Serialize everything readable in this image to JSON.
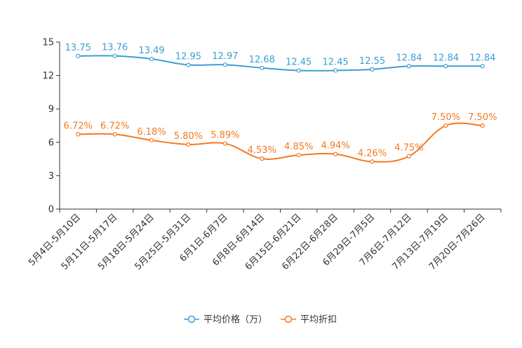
{
  "chart_data": {
    "type": "line",
    "title": "",
    "xlabel": "",
    "ylabel": "",
    "ylim": [
      0,
      15
    ],
    "yticks": [
      0,
      3,
      6,
      9,
      12,
      15
    ],
    "grid": false,
    "legend_position": "bottom-center",
    "categories": [
      "5月4日-5月10日",
      "5月11日-5月17日",
      "5月18日-5月24日",
      "5月25日-5月31日",
      "6月1日-6月7日",
      "6月8日-6月14日",
      "6月15日-6月21日",
      "6月22日-6月28日",
      "6月29日-7月5日",
      "7月6日-7月12日",
      "7月13日-7月19日",
      "7月20日-7月26日"
    ],
    "series": [
      {
        "name": "平均价格（万）",
        "color": "#3c9fd4",
        "values": [
          13.75,
          13.76,
          13.49,
          12.95,
          12.97,
          12.68,
          12.45,
          12.45,
          12.55,
          12.84,
          12.84,
          12.84
        ],
        "labels": [
          "13.75",
          "13.76",
          "13.49",
          "12.95",
          "12.97",
          "12.68",
          "12.45",
          "12.45",
          "12.55",
          "12.84",
          "12.84",
          "12.84"
        ]
      },
      {
        "name": "平均折扣",
        "color": "#f47920",
        "values": [
          6.72,
          6.72,
          6.18,
          5.8,
          5.89,
          4.53,
          4.85,
          4.94,
          4.26,
          4.75,
          7.5,
          7.5
        ],
        "labels": [
          "6.72%",
          "6.72%",
          "6.18%",
          "5.80%",
          "5.89%",
          "4.53%",
          "4.85%",
          "4.94%",
          "4.26%",
          "4.75%",
          "7.50%",
          "7.50%"
        ]
      }
    ]
  }
}
